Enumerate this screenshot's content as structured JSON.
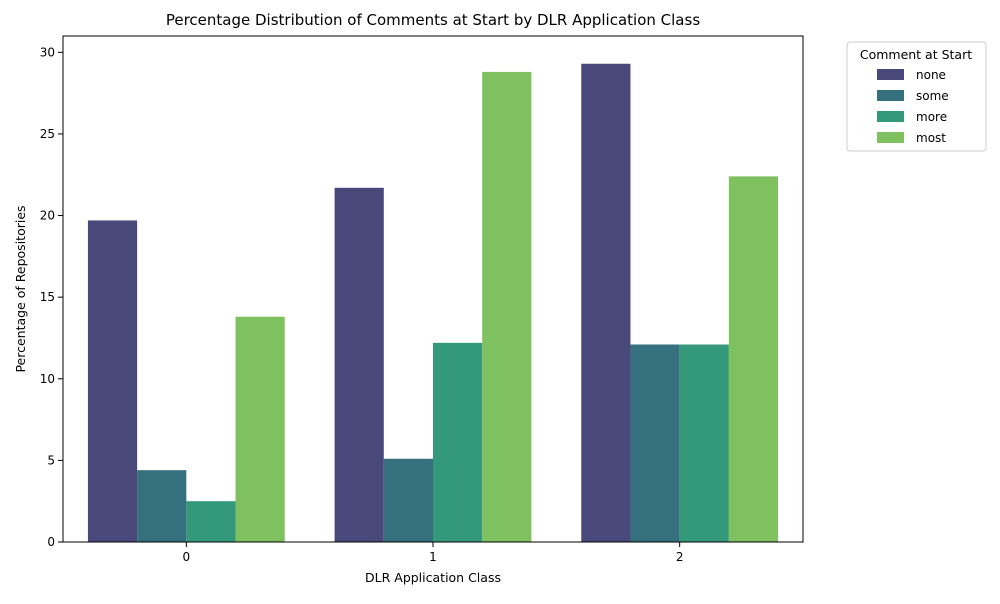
{
  "chart_data": {
    "type": "bar",
    "title": "Percentage Distribution of Comments at Start by DLR Application Class",
    "xlabel": "DLR Application Class",
    "ylabel": "Percentage of Repositories",
    "categories": [
      "0",
      "1",
      "2"
    ],
    "ylim": [
      0,
      31
    ],
    "yticks": [
      0,
      5,
      10,
      15,
      20,
      25,
      30
    ],
    "grid": false,
    "legend": {
      "title": "Comment at Start",
      "placement": "outside-top-right"
    },
    "series": [
      {
        "name": "none",
        "color": "#48497a",
        "values": [
          19.7,
          21.7,
          29.3
        ]
      },
      {
        "name": "some",
        "color": "#35707f",
        "values": [
          4.4,
          5.1,
          12.1
        ]
      },
      {
        "name": "more",
        "color": "#34987a",
        "values": [
          2.5,
          12.2,
          12.1
        ]
      },
      {
        "name": "most",
        "color": "#7fc160",
        "values": [
          13.8,
          28.8,
          22.4
        ]
      }
    ]
  }
}
